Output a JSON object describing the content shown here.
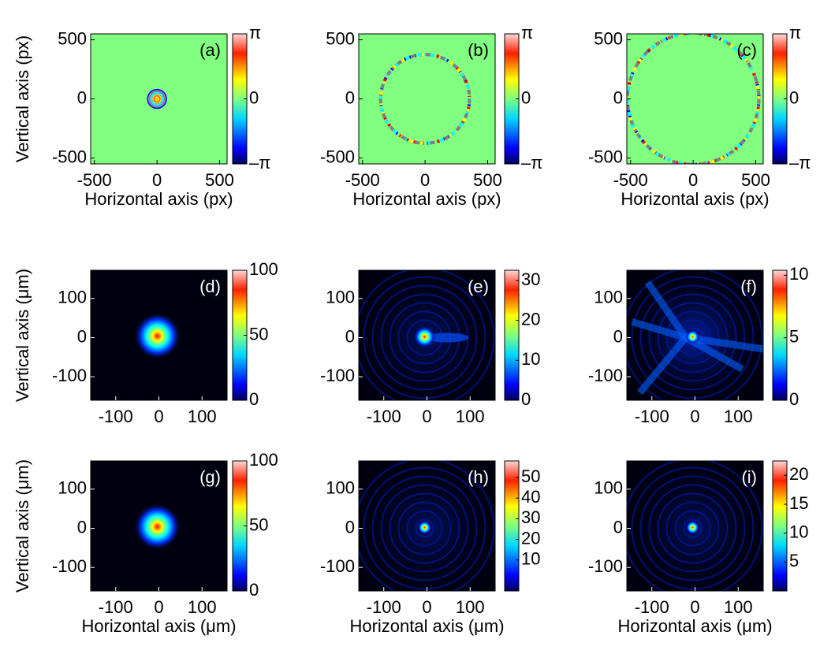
{
  "chart_data": [
    {
      "type": "heatmap",
      "label": "(a)",
      "ylabel": "Vertical axis (px)",
      "xlabel": "Horizontal axis (px)",
      "xlim": [
        -530,
        560
      ],
      "xticks": [
        -500,
        0,
        500
      ],
      "ylim": [
        -550,
        550
      ],
      "yticks": [
        -500,
        0,
        500
      ],
      "colorbar": {
        "lim": [
          -3.14159,
          3.14159
        ],
        "ticks": [
          {
            "value": 3.14159,
            "label": "π"
          },
          0,
          {
            "value": -3.14159,
            "label": "–π"
          }
        ]
      }
    },
    {
      "type": "heatmap",
      "label": "(b)",
      "xlabel": "Horizontal axis (px)",
      "xlim": [
        -530,
        560
      ],
      "xticks": [
        -500,
        0,
        500
      ],
      "ylim": [
        -550,
        550
      ],
      "yticks": [
        -500,
        0,
        500
      ],
      "colorbar": {
        "lim": [
          -3.14159,
          3.14159
        ],
        "ticks": [
          {
            "value": 3.14159,
            "label": "π"
          },
          0,
          {
            "value": -3.14159,
            "label": "–π"
          }
        ]
      }
    },
    {
      "type": "heatmap",
      "label": "(c)",
      "xlabel": "Horizontal axis (px)",
      "xlim": [
        -530,
        560
      ],
      "xticks": [
        -500,
        0,
        500
      ],
      "ylim": [
        -550,
        550
      ],
      "yticks": [
        -500,
        0,
        500
      ],
      "colorbar": {
        "lim": [
          -3.14159,
          3.14159
        ],
        "ticks": [
          {
            "value": 3.14159,
            "label": "π"
          },
          0,
          {
            "value": -3.14159,
            "label": "–π"
          }
        ]
      }
    },
    {
      "type": "heatmap",
      "label": "(d)",
      "ylabel": "Vertical axis (μm)",
      "xlim": [
        -158,
        158
      ],
      "xticks": [
        -100,
        0,
        100
      ],
      "ylim": [
        -160,
        172
      ],
      "yticks": [
        -100,
        0,
        100
      ],
      "colorbar": {
        "lim": [
          0,
          100
        ],
        "ticks": [
          0,
          50,
          100
        ]
      }
    },
    {
      "type": "heatmap",
      "label": "(e)",
      "xlim": [
        -158,
        158
      ],
      "xticks": [
        -100,
        0,
        100
      ],
      "ylim": [
        -160,
        172
      ],
      "yticks": [
        -100,
        0,
        100
      ],
      "colorbar": {
        "lim": [
          0,
          32.6
        ],
        "ticks": [
          0,
          10,
          20,
          30
        ]
      }
    },
    {
      "type": "heatmap",
      "label": "(f)",
      "xlim": [
        -158,
        158
      ],
      "xticks": [
        -100,
        0,
        100
      ],
      "ylim": [
        -160,
        172
      ],
      "yticks": [
        -100,
        0,
        100
      ],
      "colorbar": {
        "lim": [
          0,
          10.4
        ],
        "ticks": [
          0,
          5,
          10
        ]
      }
    },
    {
      "type": "heatmap",
      "label": "(g)",
      "ylabel": "Vertical axis (μm)",
      "xlabel": "Horizontal axis (μm)",
      "xlim": [
        -158,
        158
      ],
      "xticks": [
        -100,
        0,
        100
      ],
      "ylim": [
        -160,
        172
      ],
      "yticks": [
        -100,
        0,
        100
      ],
      "colorbar": {
        "lim": [
          0,
          100
        ],
        "ticks": [
          0,
          50,
          100
        ]
      }
    },
    {
      "type": "heatmap",
      "label": "(h)",
      "xlabel": "Horizontal axis (μm)",
      "xlim": [
        -158,
        158
      ],
      "xticks": [
        -100,
        0,
        100
      ],
      "ylim": [
        -160,
        172
      ],
      "yticks": [
        -100,
        0,
        100
      ],
      "colorbar": {
        "lim": [
          -5,
          58
        ],
        "ticks": [
          10,
          20,
          30,
          40,
          50
        ]
      }
    },
    {
      "type": "heatmap",
      "label": "(i)",
      "xlabel": "Horizontal axis (μm)",
      "xlim": [
        -158,
        158
      ],
      "xticks": [
        -100,
        0,
        100
      ],
      "ylim": [
        -160,
        172
      ],
      "yticks": [
        -100,
        0,
        100
      ],
      "colorbar": {
        "lim": [
          0,
          22.5
        ],
        "ticks": [
          5,
          10,
          15,
          20
        ]
      }
    }
  ]
}
